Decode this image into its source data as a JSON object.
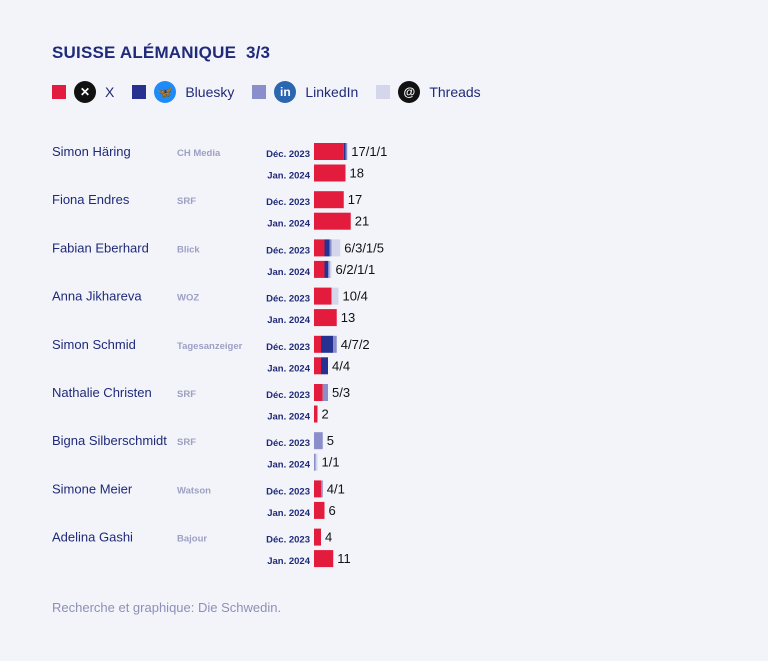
{
  "title": "SUISSE ALÉMANIQUE  3/3",
  "source": "Recherche et graphique: Die Schwedin.",
  "legend": [
    {
      "name": "X",
      "color": "#e31c3d",
      "icon": "x-logo-icon",
      "glyph": "✕",
      "icon_bg": "#111111"
    },
    {
      "name": "Bluesky",
      "color": "#27318f",
      "icon": "bluesky-butterfly-icon",
      "glyph": "🦋",
      "icon_bg": "#1d8cf8"
    },
    {
      "name": "LinkedIn",
      "color": "#8a8fcb",
      "icon": "linkedin-logo-icon",
      "glyph": "in",
      "icon_bg": "#2b67b1"
    },
    {
      "name": "Threads",
      "color": "#d4d7ec",
      "icon": "threads-logo-icon",
      "glyph": "@",
      "icon_bg": "#111111"
    }
  ],
  "chart_data": {
    "type": "bar",
    "orientation": "horizontal",
    "stacked": true,
    "series": [
      "X",
      "Bluesky",
      "LinkedIn",
      "Threads"
    ],
    "period_labels": [
      "Déc. 2023",
      "Jan. 2024"
    ],
    "rows": [
      {
        "name": "Simon Häring",
        "outlet": "CH Media",
        "periods": [
          {
            "label": "17/1/1",
            "values": {
              "X": 17,
              "Bluesky": 1,
              "LinkedIn": 1,
              "Threads": 0
            }
          },
          {
            "label": "18",
            "values": {
              "X": 18,
              "Bluesky": 0,
              "LinkedIn": 0,
              "Threads": 0
            }
          }
        ]
      },
      {
        "name": "Fiona Endres",
        "outlet": "SRF",
        "periods": [
          {
            "label": "17",
            "values": {
              "X": 17,
              "Bluesky": 0,
              "LinkedIn": 0,
              "Threads": 0
            }
          },
          {
            "label": "21",
            "values": {
              "X": 21,
              "Bluesky": 0,
              "LinkedIn": 0,
              "Threads": 0
            }
          }
        ]
      },
      {
        "name": "Fabian Eberhard",
        "outlet": "Blick",
        "periods": [
          {
            "label": "6/3/1/5",
            "values": {
              "X": 6,
              "Bluesky": 3,
              "LinkedIn": 1,
              "Threads": 5
            }
          },
          {
            "label": "6/2/1/1",
            "values": {
              "X": 6,
              "Bluesky": 2,
              "LinkedIn": 1,
              "Threads": 1
            }
          }
        ]
      },
      {
        "name": "Anna Jikhareva",
        "outlet": "WOZ",
        "periods": [
          {
            "label": "10/4",
            "values": {
              "X": 10,
              "Bluesky": 0,
              "LinkedIn": 0,
              "Threads": 4
            }
          },
          {
            "label": "13",
            "values": {
              "X": 13,
              "Bluesky": 0,
              "LinkedIn": 0,
              "Threads": 0
            }
          }
        ]
      },
      {
        "name": "Simon Schmid",
        "outlet": "Tagesanzeiger",
        "periods": [
          {
            "label": "4/7/2",
            "values": {
              "X": 4,
              "Bluesky": 7,
              "LinkedIn": 2,
              "Threads": 0
            }
          },
          {
            "label": "4/4",
            "values": {
              "X": 4,
              "Bluesky": 4,
              "LinkedIn": 0,
              "Threads": 0
            }
          }
        ]
      },
      {
        "name": "Nathalie Christen",
        "outlet": "SRF",
        "periods": [
          {
            "label": "5/3",
            "values": {
              "X": 5,
              "Bluesky": 0,
              "LinkedIn": 3,
              "Threads": 0
            }
          },
          {
            "label": "2",
            "values": {
              "X": 2,
              "Bluesky": 0,
              "LinkedIn": 0,
              "Threads": 0
            }
          }
        ]
      },
      {
        "name": "Bigna Silberschmidt",
        "outlet": "SRF",
        "periods": [
          {
            "label": "5",
            "values": {
              "X": 0,
              "Bluesky": 0,
              "LinkedIn": 5,
              "Threads": 0
            }
          },
          {
            "label": "1/1",
            "values": {
              "X": 0,
              "Bluesky": 0,
              "LinkedIn": 1,
              "Threads": 1
            }
          }
        ]
      },
      {
        "name": "Simone Meier",
        "outlet": "Watson",
        "periods": [
          {
            "label": "4/1",
            "values": {
              "X": 4,
              "Bluesky": 0,
              "LinkedIn": 1,
              "Threads": 0
            }
          },
          {
            "label": "6",
            "values": {
              "X": 6,
              "Bluesky": 0,
              "LinkedIn": 0,
              "Threads": 0
            }
          }
        ]
      },
      {
        "name": "Adelina Gashi",
        "outlet": "Bajour",
        "periods": [
          {
            "label": "4",
            "values": {
              "X": 4,
              "Bluesky": 0,
              "LinkedIn": 0,
              "Threads": 0
            }
          },
          {
            "label": "11",
            "values": {
              "X": 11,
              "Bluesky": 0,
              "LinkedIn": 0,
              "Threads": 0
            }
          }
        ]
      }
    ]
  }
}
